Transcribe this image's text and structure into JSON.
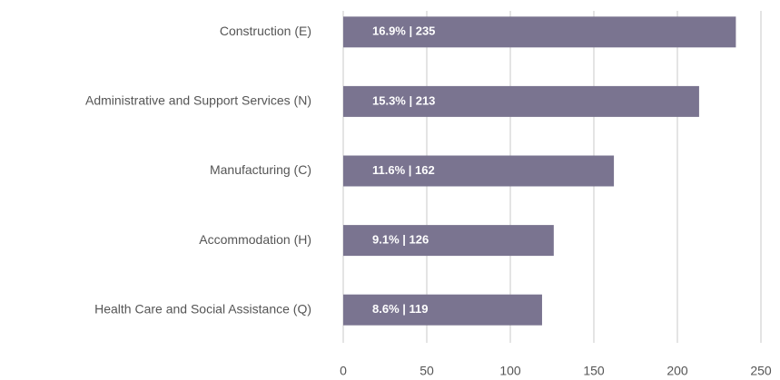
{
  "chart_data": {
    "type": "bar",
    "orientation": "horizontal",
    "categories": [
      "Construction (E)",
      "Administrative and Support Services (N)",
      "Manufacturing (C)",
      "Accommodation (H)",
      "Health Care and Social Assistance (Q)"
    ],
    "values": [
      235,
      213,
      162,
      126,
      119
    ],
    "value_labels": [
      "16.9% | 235",
      "15.3% | 213",
      "11.6% | 162",
      "9.1% | 126",
      "8.6% | 119"
    ],
    "color": "#7a7490",
    "xlim": [
      0,
      250
    ],
    "xticks": [
      0,
      50,
      100,
      150,
      200,
      250
    ],
    "grid": true
  }
}
